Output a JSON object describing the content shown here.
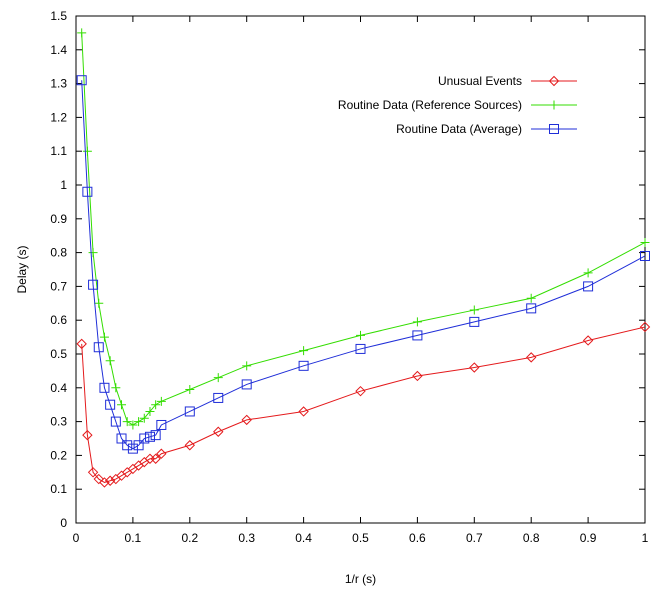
{
  "chart_data": {
    "type": "line",
    "title": "",
    "xlabel": "1/r (s)",
    "ylabel": "Delay (s)",
    "xlim": [
      0,
      1
    ],
    "ylim": [
      0,
      1.5
    ],
    "x_ticks": [
      0,
      0.1,
      0.2,
      0.3,
      0.4,
      0.5,
      0.6,
      0.7,
      0.8,
      0.9,
      1
    ],
    "x_tick_labels": [
      "0",
      "0.1",
      "0.2",
      "0.3",
      "0.4",
      "0.5",
      "0.6",
      "0.7",
      "0.8",
      "0.9",
      "1"
    ],
    "y_ticks": [
      0,
      0.1,
      0.2,
      0.3,
      0.4,
      0.5,
      0.6,
      0.7,
      0.8,
      0.9,
      1,
      1.1,
      1.2,
      1.3,
      1.4,
      1.5
    ],
    "y_tick_labels": [
      "0",
      "0.1",
      "0.2",
      "0.3",
      "0.4",
      "0.5",
      "0.6",
      "0.7",
      "0.8",
      "0.9",
      "1",
      "1.1",
      "1.2",
      "1.3",
      "1.4",
      "1.5"
    ],
    "grid": false,
    "legend_position": "top-right",
    "series": [
      {
        "name": "Unusual Events",
        "color": "#e41a1c",
        "marker": "diamond",
        "x": [
          0.01,
          0.02,
          0.03,
          0.04,
          0.05,
          0.06,
          0.07,
          0.08,
          0.09,
          0.1,
          0.11,
          0.12,
          0.13,
          0.14,
          0.15,
          0.2,
          0.25,
          0.3,
          0.4,
          0.5,
          0.6,
          0.7,
          0.8,
          0.9,
          1.0
        ],
        "y": [
          0.53,
          0.26,
          0.15,
          0.13,
          0.12,
          0.125,
          0.13,
          0.14,
          0.15,
          0.16,
          0.17,
          0.18,
          0.19,
          0.19,
          0.205,
          0.23,
          0.27,
          0.305,
          0.33,
          0.39,
          0.435,
          0.46,
          0.49,
          0.54,
          0.58
        ]
      },
      {
        "name": "Routine Data (Reference Sources)",
        "color": "#33dd00",
        "marker": "plus",
        "x": [
          0.01,
          0.02,
          0.03,
          0.04,
          0.05,
          0.06,
          0.07,
          0.08,
          0.09,
          0.1,
          0.11,
          0.12,
          0.13,
          0.14,
          0.15,
          0.2,
          0.25,
          0.3,
          0.4,
          0.5,
          0.6,
          0.7,
          0.8,
          0.9,
          1.0
        ],
        "y": [
          1.45,
          1.1,
          0.8,
          0.65,
          0.55,
          0.48,
          0.4,
          0.35,
          0.3,
          0.29,
          0.3,
          0.31,
          0.33,
          0.35,
          0.36,
          0.395,
          0.43,
          0.465,
          0.51,
          0.555,
          0.595,
          0.63,
          0.665,
          0.74,
          0.83
        ]
      },
      {
        "name": "Routine Data (Average)",
        "color": "#1f2ed8",
        "marker": "square",
        "x": [
          0.01,
          0.02,
          0.03,
          0.04,
          0.05,
          0.06,
          0.07,
          0.08,
          0.09,
          0.1,
          0.11,
          0.12,
          0.13,
          0.14,
          0.15,
          0.2,
          0.25,
          0.3,
          0.4,
          0.5,
          0.6,
          0.7,
          0.8,
          0.9,
          1.0
        ],
        "y": [
          1.31,
          0.98,
          0.705,
          0.52,
          0.4,
          0.35,
          0.3,
          0.25,
          0.23,
          0.22,
          0.23,
          0.25,
          0.255,
          0.26,
          0.29,
          0.33,
          0.37,
          0.41,
          0.465,
          0.515,
          0.555,
          0.595,
          0.635,
          0.7,
          0.79
        ]
      }
    ]
  }
}
